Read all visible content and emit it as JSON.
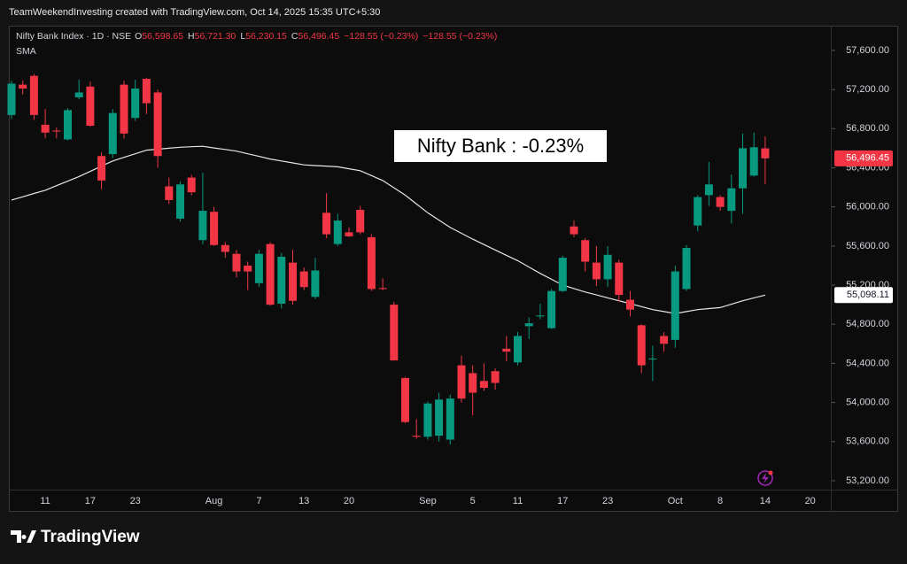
{
  "header": {
    "credit": "TeamWeekendInvesting created with TradingView.com, Oct 14, 2025 15:35 UTC+5:30"
  },
  "footer": {
    "logo": "TradingView"
  },
  "chart_data": {
    "type": "candlestick",
    "annotation": "Nifty Bank : -0.23%",
    "ohlc_labels": [
      {
        "key": "O",
        "value": "56,598.65"
      },
      {
        "key": "H",
        "value": "56,721.30"
      },
      {
        "key": "L",
        "value": "56,230.15"
      },
      {
        "key": "C",
        "value": "56,496.45"
      }
    ],
    "change_label": "−128.55 (−0.23%)",
    "categories": [
      null,
      null,
      null,
      "11",
      null,
      null,
      null,
      "17",
      null,
      null,
      null,
      "23",
      null,
      null,
      null,
      null,
      null,
      null,
      "Aug",
      null,
      null,
      null,
      "7",
      null,
      null,
      null,
      "13",
      null,
      null,
      null,
      "20",
      null,
      null,
      null,
      null,
      null,
      null,
      "Sep",
      null,
      null,
      null,
      "5",
      null,
      null,
      null,
      "11",
      null,
      null,
      null,
      "17",
      null,
      null,
      null,
      "23",
      null,
      null,
      null,
      null,
      null,
      "Oct",
      null,
      null,
      null,
      "8",
      null,
      null,
      null,
      "14",
      null,
      null,
      null,
      "20"
    ],
    "series": [
      {
        "name": "Nifty Bank Index · 1D · NSE",
        "type": "candlestick",
        "up_color": "#089981",
        "down_color": "#f23645",
        "last_label": "56,496.45",
        "open": [
          56940,
          57250,
          57340,
          56840,
          56780,
          56690,
          57120,
          57230,
          56520,
          56540,
          57250,
          56910,
          57310,
          57170,
          56210,
          55880,
          56300,
          55660,
          55950,
          55610,
          55520,
          55400,
          55220,
          55620,
          55010,
          55430,
          55340,
          55080,
          55940,
          55620,
          55740,
          55970,
          55690,
          55170,
          55000,
          54250,
          53660,
          53650,
          53660,
          53620,
          54380,
          54300,
          54220,
          54320,
          54550,
          54410,
          54780,
          54880,
          54760,
          55140,
          55800,
          55660,
          55430,
          55260,
          55430,
          55050,
          54790,
          54440,
          54680,
          54640,
          55160,
          55810,
          56120,
          56100,
          55960,
          56190,
          56320,
          56598.65,
          null,
          null,
          null,
          null
        ],
        "high": [
          57290,
          57290,
          57360,
          57000,
          56810,
          57010,
          57300,
          57280,
          56560,
          57000,
          57290,
          57300,
          57320,
          57200,
          56300,
          56260,
          56330,
          56350,
          56000,
          55640,
          55560,
          55440,
          55560,
          55640,
          55530,
          55560,
          55380,
          55480,
          56140,
          55930,
          55790,
          56010,
          55720,
          55270,
          55030,
          54260,
          53830,
          54010,
          54100,
          54080,
          54480,
          54380,
          54400,
          54350,
          54680,
          54720,
          54870,
          55010,
          55160,
          55500,
          55860,
          55680,
          55600,
          55600,
          55460,
          55140,
          54800,
          54580,
          54720,
          55400,
          55610,
          56120,
          56460,
          56120,
          56330,
          56750,
          56760,
          56721.3,
          null,
          null,
          null,
          null
        ],
        "low": [
          56900,
          57150,
          56890,
          56700,
          56700,
          56680,
          57100,
          56820,
          56180,
          56500,
          56700,
          56880,
          56950,
          56400,
          56030,
          55850,
          56120,
          55620,
          55600,
          55480,
          55280,
          55150,
          55180,
          54990,
          54960,
          55000,
          55150,
          55060,
          55680,
          55600,
          55690,
          55720,
          55140,
          55150,
          54430,
          53790,
          53630,
          53620,
          53600,
          53570,
          54000,
          53870,
          54120,
          54130,
          54420,
          54380,
          54650,
          54850,
          54750,
          55130,
          55690,
          55340,
          55190,
          55180,
          55030,
          54880,
          54300,
          54220,
          54520,
          54560,
          55140,
          55750,
          56010,
          55960,
          55830,
          55930,
          56310,
          56230.15,
          null,
          null,
          null,
          null
        ],
        "close": [
          57260,
          57210,
          56940,
          56760,
          56770,
          56990,
          57170,
          56830,
          56270,
          56960,
          56750,
          57210,
          57060,
          56520,
          56070,
          56230,
          56150,
          55960,
          55610,
          55540,
          55340,
          55340,
          55520,
          55000,
          55490,
          55040,
          55180,
          55350,
          55720,
          55860,
          55700,
          55740,
          55160,
          55160,
          54430,
          53800,
          53650,
          53990,
          54030,
          54040,
          54040,
          54100,
          54150,
          54200,
          54520,
          54680,
          54810,
          54890,
          55140,
          55480,
          55720,
          55440,
          55260,
          55510,
          55100,
          54950,
          54380,
          54450,
          54600,
          55340,
          55580,
          56100,
          56230,
          56000,
          56190,
          56600,
          56610,
          56496.45,
          null,
          null,
          null,
          null
        ]
      },
      {
        "name": "SMA",
        "type": "line",
        "color": "#e6e6e6",
        "last_label": "55,098.11",
        "values": [
          56070,
          56103,
          56137,
          56170,
          56217,
          56263,
          56310,
          56363,
          56417,
          56470,
          56507,
          56543,
          56580,
          56590,
          56600,
          56610,
          56615,
          56620,
          56603,
          56587,
          56570,
          56543,
          56517,
          56490,
          56470,
          56450,
          56430,
          56423,
          56417,
          56410,
          56390,
          56370,
          56320,
          56270,
          56195,
          56120,
          56030,
          55940,
          55865,
          55790,
          55730,
          55670,
          55615,
          55560,
          55505,
          55450,
          55385,
          55320,
          55260,
          55200,
          55165,
          55130,
          55100,
          55070,
          55040,
          55010,
          54980,
          54950,
          54930,
          54910,
          54930,
          54950,
          54960,
          54970,
          55005,
          55040,
          55070,
          55098.11,
          null,
          null,
          null,
          null
        ]
      }
    ],
    "ylim": [
      53109,
      57844
    ],
    "yticks": [
      {
        "value": 53200,
        "label": "53,200.00"
      },
      {
        "value": 53600,
        "label": "53,600.00"
      },
      {
        "value": 54000,
        "label": "54,000.00"
      },
      {
        "value": 54400,
        "label": "54,400.00"
      },
      {
        "value": 54800,
        "label": "54,800.00"
      },
      {
        "value": 55200,
        "label": "55,200.00"
      },
      {
        "value": 55600,
        "label": "55,600.00"
      },
      {
        "value": 56000,
        "label": "56,000.00"
      },
      {
        "value": 56400,
        "label": "56,400.00"
      },
      {
        "value": 56800,
        "label": "56,800.00"
      },
      {
        "value": 57200,
        "label": "57,200.00"
      },
      {
        "value": 57600,
        "label": "57,600.00"
      }
    ],
    "grid": false
  }
}
